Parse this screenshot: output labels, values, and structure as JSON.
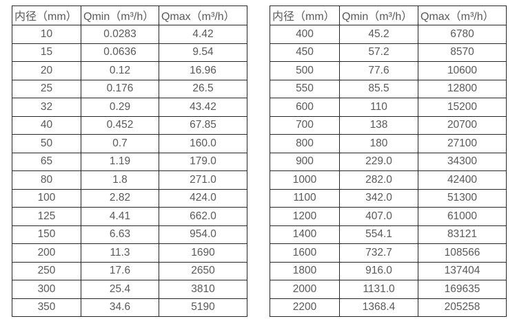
{
  "colors": {
    "background": "#ffffff",
    "border": "#262626",
    "text": "#595959"
  },
  "tables": [
    {
      "id": "small-diameter-flow-table",
      "headers": [
        "内径（mm）",
        "Qmin（m³/h）",
        "Qmax（m³/h）"
      ],
      "rows": [
        [
          "10",
          "0.0283",
          "4.42"
        ],
        [
          "15",
          "0.0636",
          "9.54"
        ],
        [
          "20",
          "0.12",
          "16.96"
        ],
        [
          "25",
          "0.176",
          "26.5"
        ],
        [
          "32",
          "0.29",
          "43.42"
        ],
        [
          "40",
          "0.452",
          "67.85"
        ],
        [
          "50",
          "0.7",
          "160.0"
        ],
        [
          "65",
          "1.19",
          "179.0"
        ],
        [
          "80",
          "1.8",
          "271.0"
        ],
        [
          "100",
          "2.82",
          "424.0"
        ],
        [
          "125",
          "4.41",
          "662.0"
        ],
        [
          "150",
          "6.63",
          "954.0"
        ],
        [
          "200",
          "11.3",
          "1690"
        ],
        [
          "250",
          "17.6",
          "2650"
        ],
        [
          "300",
          "25.4",
          "3810"
        ],
        [
          "350",
          "34.6",
          "5190"
        ]
      ]
    },
    {
      "id": "large-diameter-flow-table",
      "headers": [
        "内径（mm）",
        "Qmin（m³/h）",
        "Qmax（m³/h）"
      ],
      "rows": [
        [
          "400",
          "45.2",
          "6780"
        ],
        [
          "450",
          "57.2",
          "8570"
        ],
        [
          "500",
          "77.6",
          "10600"
        ],
        [
          "550",
          "85.5",
          "12800"
        ],
        [
          "600",
          "110",
          "15200"
        ],
        [
          "700",
          "138",
          "20700"
        ],
        [
          "800",
          "180",
          "27100"
        ],
        [
          "900",
          "229.0",
          "34300"
        ],
        [
          "1000",
          "282.0",
          "42400"
        ],
        [
          "1100",
          "342.0",
          "51300"
        ],
        [
          "1200",
          "407.0",
          "61000"
        ],
        [
          "1400",
          "554.1",
          "83121"
        ],
        [
          "1600",
          "732.7",
          "108566"
        ],
        [
          "1800",
          "916.0",
          "137404"
        ],
        [
          "2000",
          "1131.0",
          "169635"
        ],
        [
          "2200",
          "1368.4",
          "205258"
        ]
      ]
    }
  ]
}
